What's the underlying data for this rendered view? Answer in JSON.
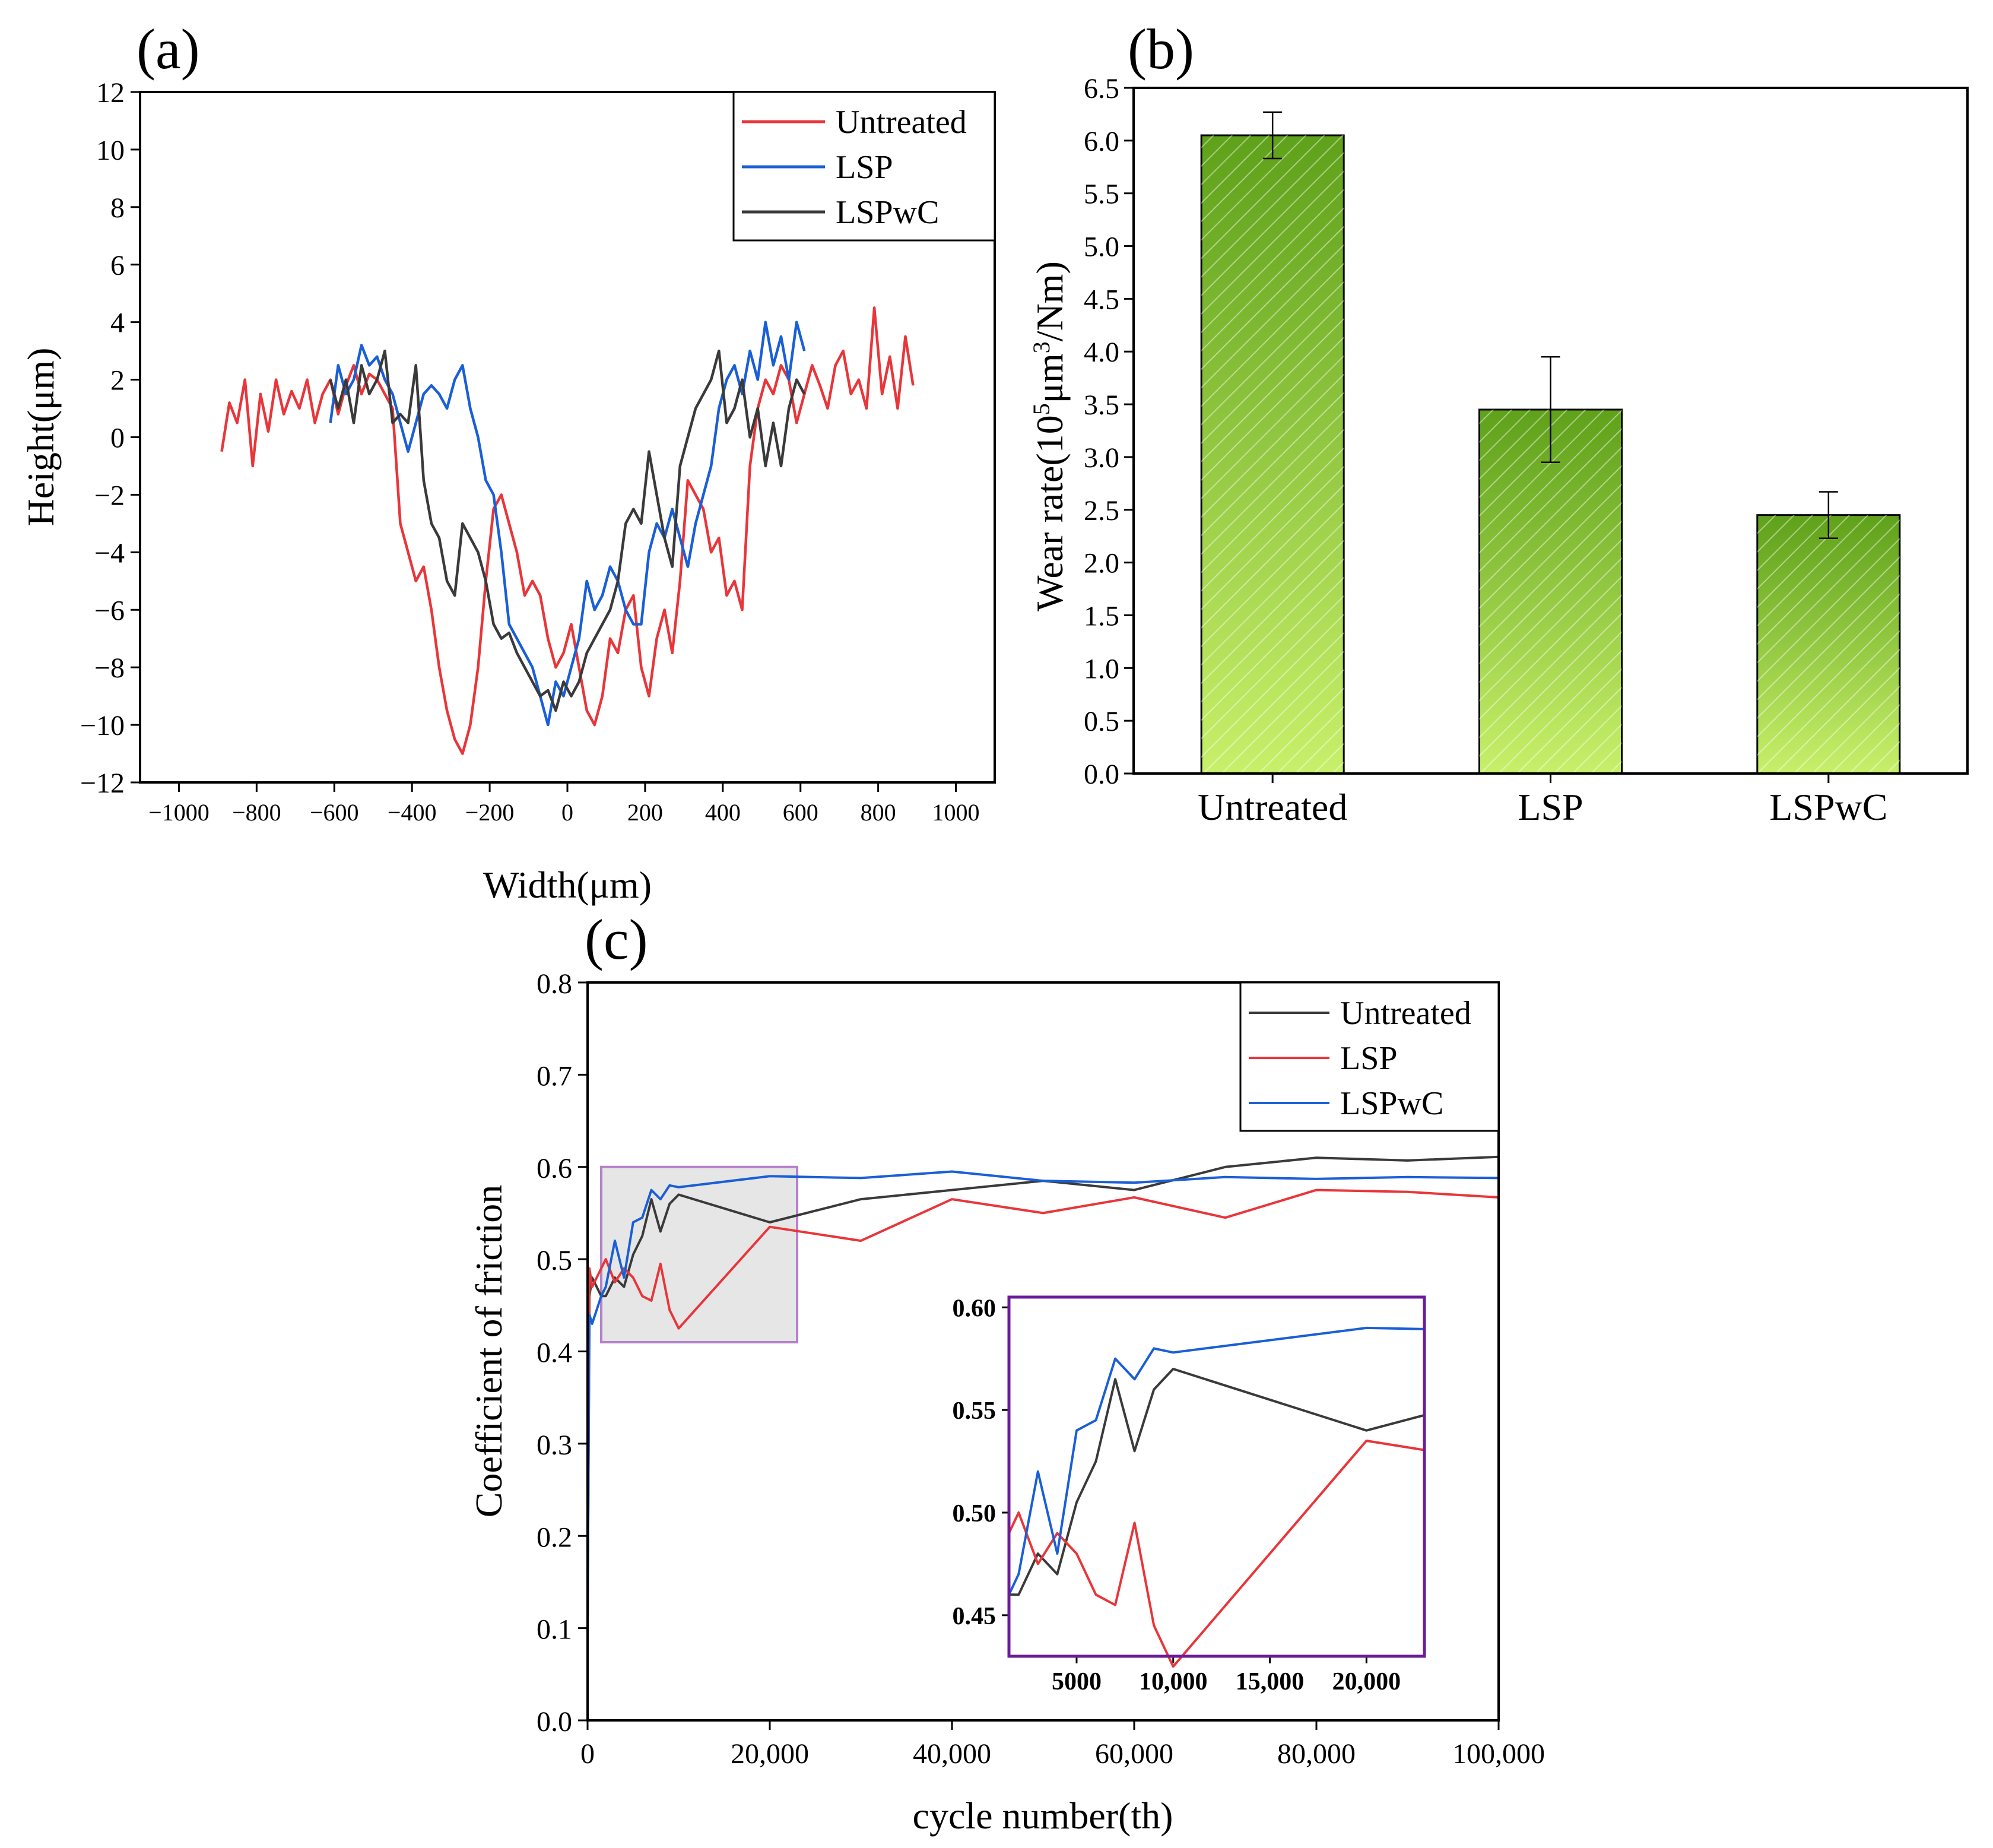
{
  "chart_data": [
    {
      "panel": "(a)",
      "type": "line",
      "xlabel": "Width(μm)",
      "ylabel": "Height(μm)",
      "xlim": [
        -1100,
        1100
      ],
      "ylim": [
        -12,
        12
      ],
      "xticks": [
        -1000,
        -800,
        -600,
        -400,
        -200,
        0,
        200,
        400,
        600,
        800,
        1000
      ],
      "xtick_labels": [
        "−1000",
        "−800",
        "−600",
        "−400",
        "−200",
        "0",
        "200",
        "400",
        "600",
        "800",
        "1000"
      ],
      "yticks": [
        -12,
        -10,
        -8,
        -6,
        -4,
        -2,
        0,
        2,
        4,
        6,
        8,
        10,
        12
      ],
      "ytick_labels": [
        "−12",
        "−10",
        "−8",
        "−6",
        "−4",
        "−2",
        "0",
        "2",
        "4",
        "6",
        "8",
        "10",
        "12"
      ],
      "legend_position": "top-right",
      "series": [
        {
          "name": "Untreated",
          "color": "#e8363a",
          "x": [
            -890,
            -870,
            -850,
            -830,
            -810,
            -790,
            -770,
            -750,
            -730,
            -710,
            -690,
            -670,
            -650,
            -630,
            -610,
            -590,
            -570,
            -550,
            -530,
            -510,
            -490,
            -470,
            -450,
            -430,
            -410,
            -390,
            -370,
            -350,
            -330,
            -310,
            -290,
            -270,
            -250,
            -230,
            -210,
            -190,
            -170,
            -150,
            -130,
            -110,
            -90,
            -70,
            -50,
            -30,
            -10,
            10,
            30,
            50,
            70,
            90,
            110,
            130,
            150,
            170,
            190,
            210,
            230,
            250,
            270,
            290,
            310,
            330,
            350,
            370,
            390,
            410,
            430,
            450,
            470,
            490,
            510,
            530,
            550,
            570,
            590,
            610,
            630,
            650,
            670,
            690,
            710,
            730,
            750,
            770,
            790,
            810,
            830,
            850,
            870,
            890
          ],
          "y": [
            -0.5,
            1.2,
            0.5,
            2,
            -1,
            1.5,
            0.2,
            2,
            0.8,
            1.6,
            1,
            2,
            0.5,
            1.5,
            2,
            0.8,
            1.8,
            2.5,
            1.5,
            2.2,
            2,
            1.5,
            1,
            -3,
            -4,
            -5,
            -4.5,
            -6,
            -8,
            -9.5,
            -10.5,
            -11,
            -10,
            -8,
            -5,
            -2.5,
            -2,
            -3,
            -4,
            -5.5,
            -5,
            -5.5,
            -7,
            -8,
            -7.5,
            -6.5,
            -8,
            -9.5,
            -10,
            -9,
            -7,
            -7.5,
            -6,
            -5.5,
            -8,
            -9,
            -7,
            -6,
            -7.5,
            -5,
            -1.5,
            -2,
            -2.5,
            -4,
            -3.5,
            -5.5,
            -5,
            -6,
            -1,
            1,
            2,
            1.5,
            2.5,
            2,
            0.5,
            1.5,
            2.5,
            1.8,
            1,
            2.5,
            3,
            1.5,
            2,
            1,
            4.5,
            1.5,
            2.8,
            1,
            3.5,
            1.8
          ]
        },
        {
          "name": "LSP",
          "color": "#1a5fd6",
          "x": [
            -610,
            -590,
            -570,
            -550,
            -530,
            -510,
            -490,
            -470,
            -450,
            -430,
            -410,
            -390,
            -370,
            -350,
            -330,
            -310,
            -290,
            -270,
            -250,
            -230,
            -210,
            -190,
            -170,
            -150,
            -130,
            -110,
            -90,
            -70,
            -50,
            -30,
            -10,
            10,
            30,
            50,
            70,
            90,
            110,
            130,
            150,
            170,
            190,
            210,
            230,
            250,
            270,
            290,
            310,
            330,
            350,
            370,
            390,
            410,
            430,
            450,
            470,
            490,
            510,
            530,
            550,
            570,
            590,
            610
          ],
          "y": [
            0.5,
            2.5,
            1.5,
            2,
            3.2,
            2.5,
            2.8,
            2,
            1.5,
            0.5,
            -0.5,
            0.5,
            1.5,
            1.8,
            1.5,
            1,
            2,
            2.5,
            1,
            0,
            -1.5,
            -2,
            -4,
            -6.5,
            -7,
            -7.5,
            -8,
            -9,
            -10,
            -8.5,
            -9,
            -8,
            -7,
            -5,
            -6,
            -5.5,
            -4.5,
            -5,
            -6,
            -6.5,
            -6.5,
            -4,
            -3,
            -3.5,
            -2.5,
            -3.5,
            -4.5,
            -3,
            -2,
            -1,
            1,
            2,
            2.5,
            1.5,
            3,
            2,
            4,
            2.5,
            3.5,
            2,
            4,
            3
          ]
        },
        {
          "name": "LSPwC",
          "color": "#3a3a3a",
          "x": [
            -610,
            -590,
            -570,
            -550,
            -530,
            -510,
            -490,
            -470,
            -450,
            -430,
            -410,
            -390,
            -370,
            -350,
            -330,
            -310,
            -290,
            -270,
            -250,
            -230,
            -210,
            -190,
            -170,
            -150,
            -130,
            -110,
            -90,
            -70,
            -50,
            -30,
            -10,
            10,
            30,
            50,
            70,
            90,
            110,
            130,
            150,
            170,
            190,
            210,
            230,
            250,
            270,
            290,
            310,
            330,
            350,
            370,
            390,
            410,
            430,
            450,
            470,
            490,
            510,
            530,
            550,
            570,
            590,
            610
          ],
          "y": [
            2,
            1,
            2,
            0.5,
            2.5,
            1.5,
            2,
            3,
            0.5,
            0.8,
            0.5,
            2.5,
            -1.5,
            -3,
            -3.5,
            -5,
            -5.5,
            -3,
            -3.5,
            -4,
            -5,
            -6.5,
            -7,
            -6.8,
            -7.5,
            -8,
            -8.5,
            -9,
            -8.8,
            -9.5,
            -8.5,
            -9,
            -8.5,
            -7.5,
            -7,
            -6.5,
            -6,
            -5,
            -3,
            -2.5,
            -3,
            -0.5,
            -2,
            -3.5,
            -4.5,
            -1,
            0,
            1,
            1.5,
            2,
            3,
            0.5,
            1,
            2,
            0,
            1,
            -1,
            0.5,
            -1,
            1,
            2,
            1.5
          ]
        }
      ]
    },
    {
      "panel": "(b)",
      "type": "bar",
      "xlabel": "",
      "ylabel": "Wear  rate(10⁵μm³/Nm)",
      "ylabel_parts": {
        "prefix": "Wear  rate(10",
        "sup1": "5",
        "mid": "μm",
        "sup2": "3",
        "suffix": "/Nm)"
      },
      "ylim": [
        0,
        6.5
      ],
      "yticks": [
        0.0,
        0.5,
        1.0,
        1.5,
        2.0,
        2.5,
        3.0,
        3.5,
        4.0,
        4.5,
        5.0,
        5.5,
        6.0,
        6.5
      ],
      "ytick_labels": [
        "0.0",
        "0.5",
        "1.0",
        "1.5",
        "2.0",
        "2.5",
        "3.0",
        "3.5",
        "4.0",
        "4.5",
        "5.0",
        "5.5",
        "6.0",
        "6.5"
      ],
      "categories": [
        "Untreated",
        "LSP",
        "LSPwC"
      ],
      "values": [
        6.05,
        3.45,
        2.45
      ],
      "errors": [
        0.22,
        0.5,
        0.22
      ],
      "bar_color_top": "#5fa11a",
      "bar_color_bottom": "#c8f06a"
    },
    {
      "panel": "(c)",
      "type": "line",
      "xlabel": "cycle number(th)",
      "ylabel": "Coefficient of friction",
      "xlim": [
        0,
        100000
      ],
      "ylim": [
        0,
        0.8
      ],
      "xticks": [
        0,
        20000,
        40000,
        60000,
        80000,
        100000
      ],
      "xtick_labels": [
        "0",
        "20,000",
        "40,000",
        "60,000",
        "80,000",
        "100,000"
      ],
      "yticks": [
        0.0,
        0.1,
        0.2,
        0.3,
        0.4,
        0.5,
        0.6,
        0.7,
        0.8
      ],
      "ytick_labels": [
        "0.0",
        "0.1",
        "0.2",
        "0.3",
        "0.4",
        "0.5",
        "0.6",
        "0.7",
        "0.8"
      ],
      "legend_position": "top-right",
      "highlight_box": {
        "x": [
          1500,
          23000
        ],
        "y": [
          0.41,
          0.6
        ]
      },
      "series": [
        {
          "name": "Untreated",
          "color": "#3a3a3a",
          "x": [
            0,
            200,
            500,
            1500,
            2000,
            3000,
            4000,
            5000,
            6000,
            7000,
            8000,
            9000,
            10000,
            20000,
            30000,
            40000,
            50000,
            60000,
            70000,
            80000,
            90000,
            100000
          ],
          "y": [
            0.1,
            0.46,
            0.48,
            0.46,
            0.46,
            0.48,
            0.47,
            0.505,
            0.525,
            0.565,
            0.53,
            0.56,
            0.57,
            0.54,
            0.565,
            0.575,
            0.585,
            0.575,
            0.6,
            0.61,
            0.607,
            0.611
          ]
        },
        {
          "name": "LSP",
          "color": "#e8363a",
          "x": [
            0,
            200,
            500,
            1500,
            2000,
            3000,
            4000,
            5000,
            6000,
            7000,
            8000,
            9000,
            10000,
            20000,
            30000,
            40000,
            50000,
            60000,
            70000,
            80000,
            90000,
            100000
          ],
          "y": [
            0.1,
            0.49,
            0.47,
            0.49,
            0.5,
            0.475,
            0.49,
            0.48,
            0.46,
            0.455,
            0.495,
            0.445,
            0.425,
            0.535,
            0.52,
            0.565,
            0.55,
            0.567,
            0.545,
            0.575,
            0.573,
            0.567
          ]
        },
        {
          "name": "LSPwC",
          "color": "#1a5fd6",
          "x": [
            0,
            200,
            500,
            1500,
            2000,
            3000,
            4000,
            5000,
            6000,
            7000,
            8000,
            9000,
            10000,
            20000,
            30000,
            40000,
            50000,
            60000,
            70000,
            80000,
            90000,
            100000
          ],
          "y": [
            0.1,
            0.44,
            0.43,
            0.46,
            0.47,
            0.52,
            0.48,
            0.54,
            0.545,
            0.575,
            0.565,
            0.58,
            0.578,
            0.59,
            0.588,
            0.595,
            0.585,
            0.583,
            0.589,
            0.587,
            0.589,
            0.588
          ]
        }
      ],
      "inset": {
        "xlim": [
          1500,
          23000
        ],
        "ylim": [
          0.43,
          0.605
        ],
        "xticks": [
          5000,
          10000,
          15000,
          20000
        ],
        "xtick_labels": [
          "5000",
          "10,000",
          "15,000",
          "20,000"
        ],
        "yticks": [
          0.45,
          0.5,
          0.55,
          0.6
        ],
        "ytick_labels": [
          "0.45",
          "0.50",
          "0.55",
          "0.60"
        ]
      }
    }
  ]
}
